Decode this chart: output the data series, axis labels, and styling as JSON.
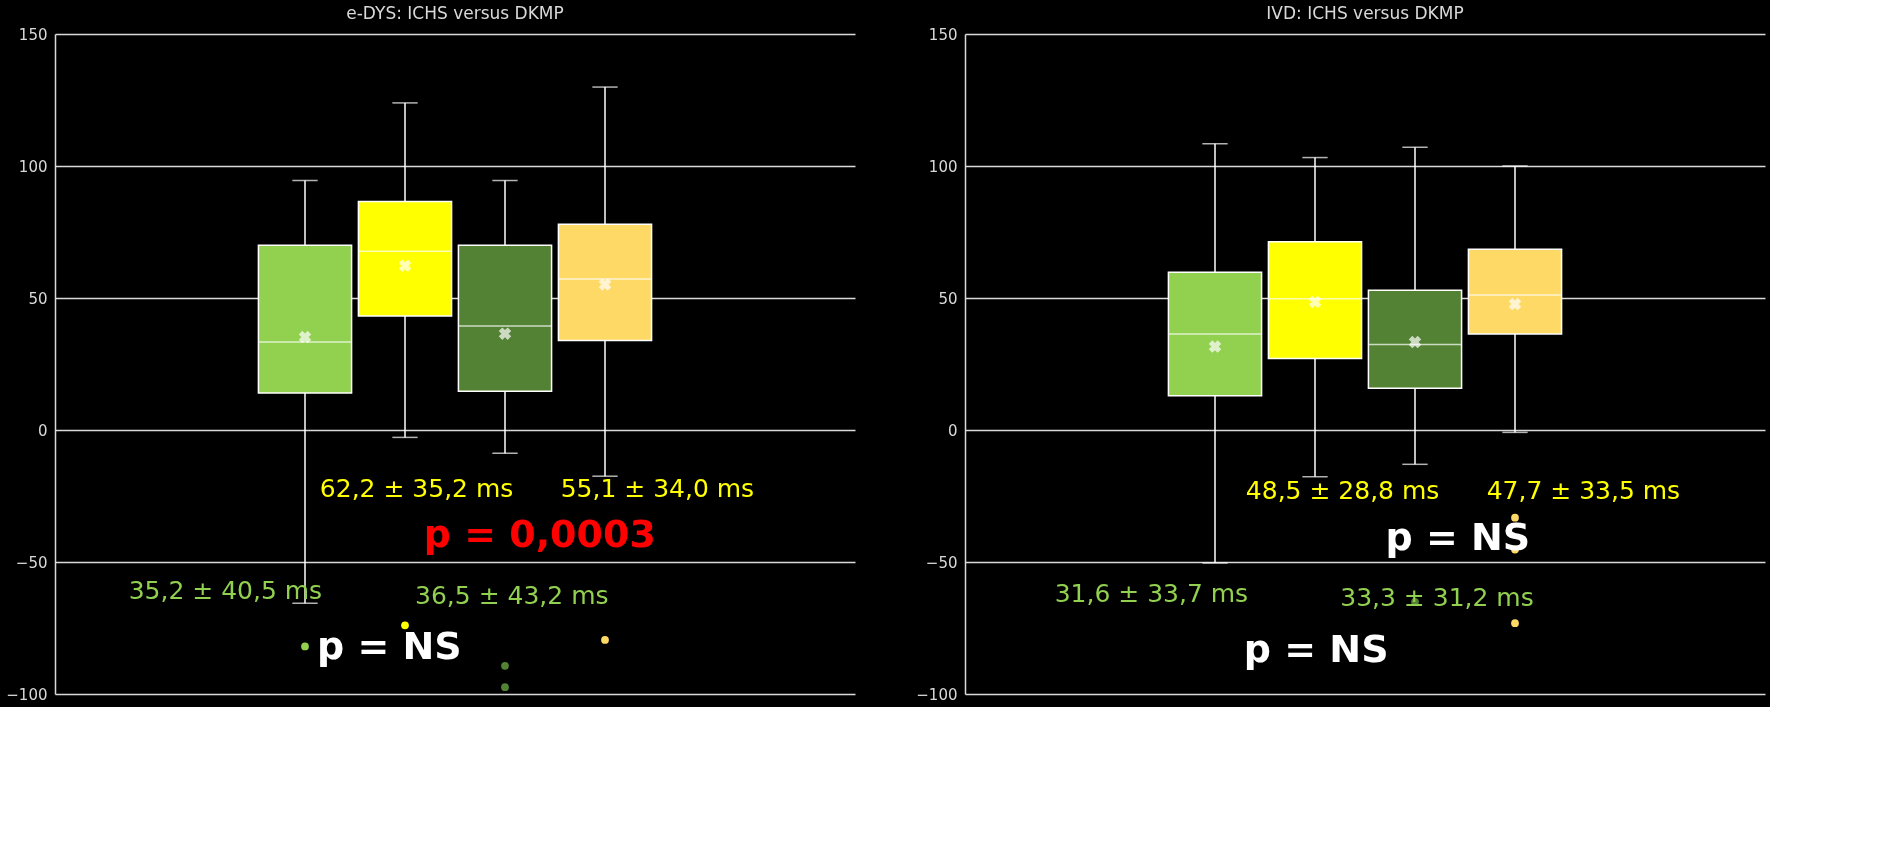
{
  "chart_data": [
    {
      "type": "box",
      "title": "e-DYS: ICHS versus DKMP",
      "categories": [
        null
      ],
      "series": [
        {
          "color": "#92d050",
          "boxes": [
            {
              "low": -65.6,
              "q1": 14,
              "median": 33.3,
              "q3": 70,
              "high": 94.5,
              "mean": 35.2,
              "outliers": [
                -82
              ]
            }
          ]
        },
        {
          "color": "#ffff00",
          "boxes": [
            {
              "low": -2.8,
              "q1": 43.2,
              "median": 67.7,
              "q3": 86.6,
              "high": 123.9,
              "mean": 62.2,
              "outliers": [
                -74
              ]
            }
          ]
        },
        {
          "color": "#548235",
          "boxes": [
            {
              "low": -8.8,
              "q1": 14.7,
              "median": 39.4,
              "q3": 70,
              "high": 94.5,
              "mean": 36.5,
              "outliers": [
                -89.3,
                -97.4
              ]
            }
          ]
        },
        {
          "color": "#ffd966",
          "boxes": [
            {
              "low": -17.5,
              "q1": 33.9,
              "median": 57.2,
              "q3": 77.9,
              "high": 129.9,
              "mean": 55.1,
              "outliers": [
                -79.5
              ]
            }
          ]
        }
      ],
      "ylim": [
        -100,
        150
      ],
      "yticks": [
        -100,
        -50,
        0,
        50,
        100,
        150
      ],
      "grid": "y",
      "tick_labels": "y",
      "annotations": [
        "62,2 ± 35,2 ms",
        "55,1 ± 34,0 ms",
        "p = 0,0003",
        "35,2 ± 40,5 ms",
        "36,5 ± 43,2 ms",
        "p = NS"
      ]
    },
    {
      "type": "box",
      "title": "IVD: ICHS versus DKMP",
      "categories": [
        null
      ],
      "series": [
        {
          "color": "#92d050",
          "boxes": [
            {
              "low": -50.4,
              "q1": 13,
              "median": 36.4,
              "q3": 59.8,
              "high": 108.4,
              "mean": 31.6
            }
          ]
        },
        {
          "color": "#ffff00",
          "boxes": [
            {
              "low": -17.7,
              "q1": 27.1,
              "median": 49.7,
              "q3": 71.3,
              "high": 103.2,
              "mean": 48.5
            }
          ]
        },
        {
          "color": "#548235",
          "boxes": [
            {
              "low": -13,
              "q1": 15.8,
              "median": 32.4,
              "q3": 52.9,
              "high": 107.1,
              "mean": 33.3,
              "outliers": [
                -65.1
              ]
            }
          ]
        },
        {
          "color": "#ffd966",
          "boxes": [
            {
              "low": -0.9,
              "q1": 36.4,
              "median": 51.1,
              "q3": 68.5,
              "high": 100,
              "mean": 47.7,
              "outliers": [
                -33.2,
                -45.3,
                -73.2
              ]
            }
          ]
        }
      ],
      "ylim": [
        -100,
        150
      ],
      "yticks": [
        -100,
        -50,
        0,
        50,
        100,
        150
      ],
      "grid": "y",
      "tick_labels": "y",
      "annotations": [
        "48,5 ± 28,8 ms",
        "47,7 ± 33,5 ms",
        "p = NS",
        "31,6 ± 33,7 ms",
        "33,3 ± 31,2 ms",
        "p = NS"
      ]
    }
  ]
}
